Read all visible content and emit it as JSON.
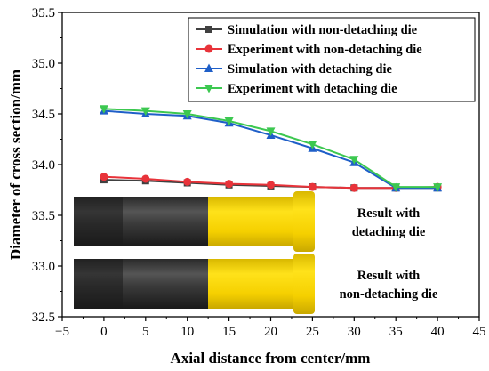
{
  "chart_data": {
    "type": "line",
    "xlabel": "Axial distance from center/mm",
    "ylabel": "Diameter of cross section/mm",
    "xlim": [
      -5,
      45
    ],
    "ylim": [
      32.5,
      35.5
    ],
    "xticks": [
      "−5",
      "0",
      "5",
      "10",
      "15",
      "20",
      "25",
      "30",
      "35",
      "40",
      "45"
    ],
    "yticks": [
      "32.5",
      "33.0",
      "33.5",
      "34.0",
      "34.5",
      "35.0",
      "35.5"
    ],
    "x": [
      0,
      5,
      10,
      15,
      20,
      25,
      30,
      35,
      40
    ],
    "grid": false,
    "legend_position": "top-right",
    "series": [
      {
        "name": "Simulation with non-detaching die",
        "color": "#404040",
        "marker": "square",
        "values": [
          33.85,
          33.84,
          33.82,
          33.8,
          33.79,
          33.78,
          33.77,
          33.77,
          33.77
        ]
      },
      {
        "name": "Experiment with non-detaching die",
        "color": "#e8333a",
        "marker": "circle",
        "values": [
          33.88,
          33.86,
          33.83,
          33.81,
          33.8,
          33.78,
          33.77,
          33.77,
          33.78
        ]
      },
      {
        "name": "Simulation with detaching die",
        "color": "#1f5fc8",
        "marker": "triangle-up",
        "values": [
          34.53,
          34.5,
          34.48,
          34.41,
          34.29,
          34.16,
          34.02,
          33.77,
          33.77
        ]
      },
      {
        "name": "Experiment with detaching die",
        "color": "#3cc850",
        "marker": "triangle-down",
        "values": [
          34.55,
          34.53,
          34.5,
          34.43,
          34.33,
          34.2,
          34.05,
          33.78,
          33.78
        ]
      }
    ],
    "annotations": [
      {
        "lines": [
          "Result with",
          "detaching die"
        ]
      },
      {
        "lines": [
          "Result with",
          "non-detaching die"
        ]
      }
    ]
  }
}
